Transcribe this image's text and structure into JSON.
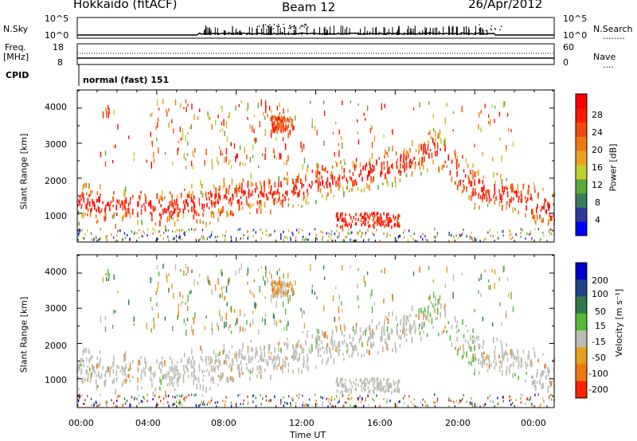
{
  "header": {
    "station": "Hokkaido (fitACF)",
    "beam": "Beam 12",
    "date": "26/Apr/2012"
  },
  "noise_panel": {
    "left_label": "N.Sky",
    "right_label": "N.Search",
    "right_label_marker": "........",
    "ticks": [
      "10^5",
      "10^0"
    ]
  },
  "freq_panel": {
    "left_label_line1": "Freq.",
    "left_label_line2": "[MHz]",
    "left_ticks": [
      "18",
      "8"
    ],
    "right_label": "Nave",
    "right_label_marker": "....",
    "right_ticks": [
      "60",
      "0"
    ]
  },
  "cpid": {
    "label": "CPID",
    "value": "normal (fast) 151"
  },
  "chart_data": [
    {
      "type": "heatmap",
      "title": "Power",
      "xlabel": "",
      "ylabel": "Slant Range [km]",
      "xlim": [
        "00:00",
        "00:00"
      ],
      "ylim": [
        180,
        4520
      ],
      "yticks": [
        "1000",
        "2000",
        "3000",
        "4000"
      ],
      "colorbar": {
        "label": "Power [dB]",
        "ticks": [
          "4",
          "8",
          "12",
          "16",
          "20",
          "24",
          "28"
        ],
        "range": [
          0,
          32
        ],
        "colors": [
          "#0000ff",
          "#2e3a9a",
          "#3a7a5e",
          "#5aaa3a",
          "#bfd030",
          "#f0a020",
          "#f07a10",
          "#f04a10",
          "#ff1a00",
          "#ff0000"
        ]
      }
    },
    {
      "type": "heatmap",
      "title": "Velocity",
      "xlabel": "Time UT",
      "ylabel": "Slant Range [km]",
      "xticks": [
        "00:00",
        "04:00",
        "08:00",
        "12:00",
        "16:00",
        "20:00",
        "00:00"
      ],
      "ylim": [
        180,
        4520
      ],
      "yticks": [
        "1000",
        "2000",
        "3000",
        "4000"
      ],
      "colorbar": {
        "label": "Velocity [m s⁻¹]",
        "ticks": [
          "200",
          "100",
          "50",
          "15",
          "-15",
          "-50",
          "-100",
          "-200"
        ],
        "colors": [
          "#0000cc",
          "#224488",
          "#2e7a4a",
          "#55bb33",
          "#bcbcb4",
          "#e8a020",
          "#f07810",
          "#ff2200"
        ]
      }
    }
  ],
  "colors": {
    "frame": "#000000",
    "ground_scatter": "#bcbcb4"
  }
}
